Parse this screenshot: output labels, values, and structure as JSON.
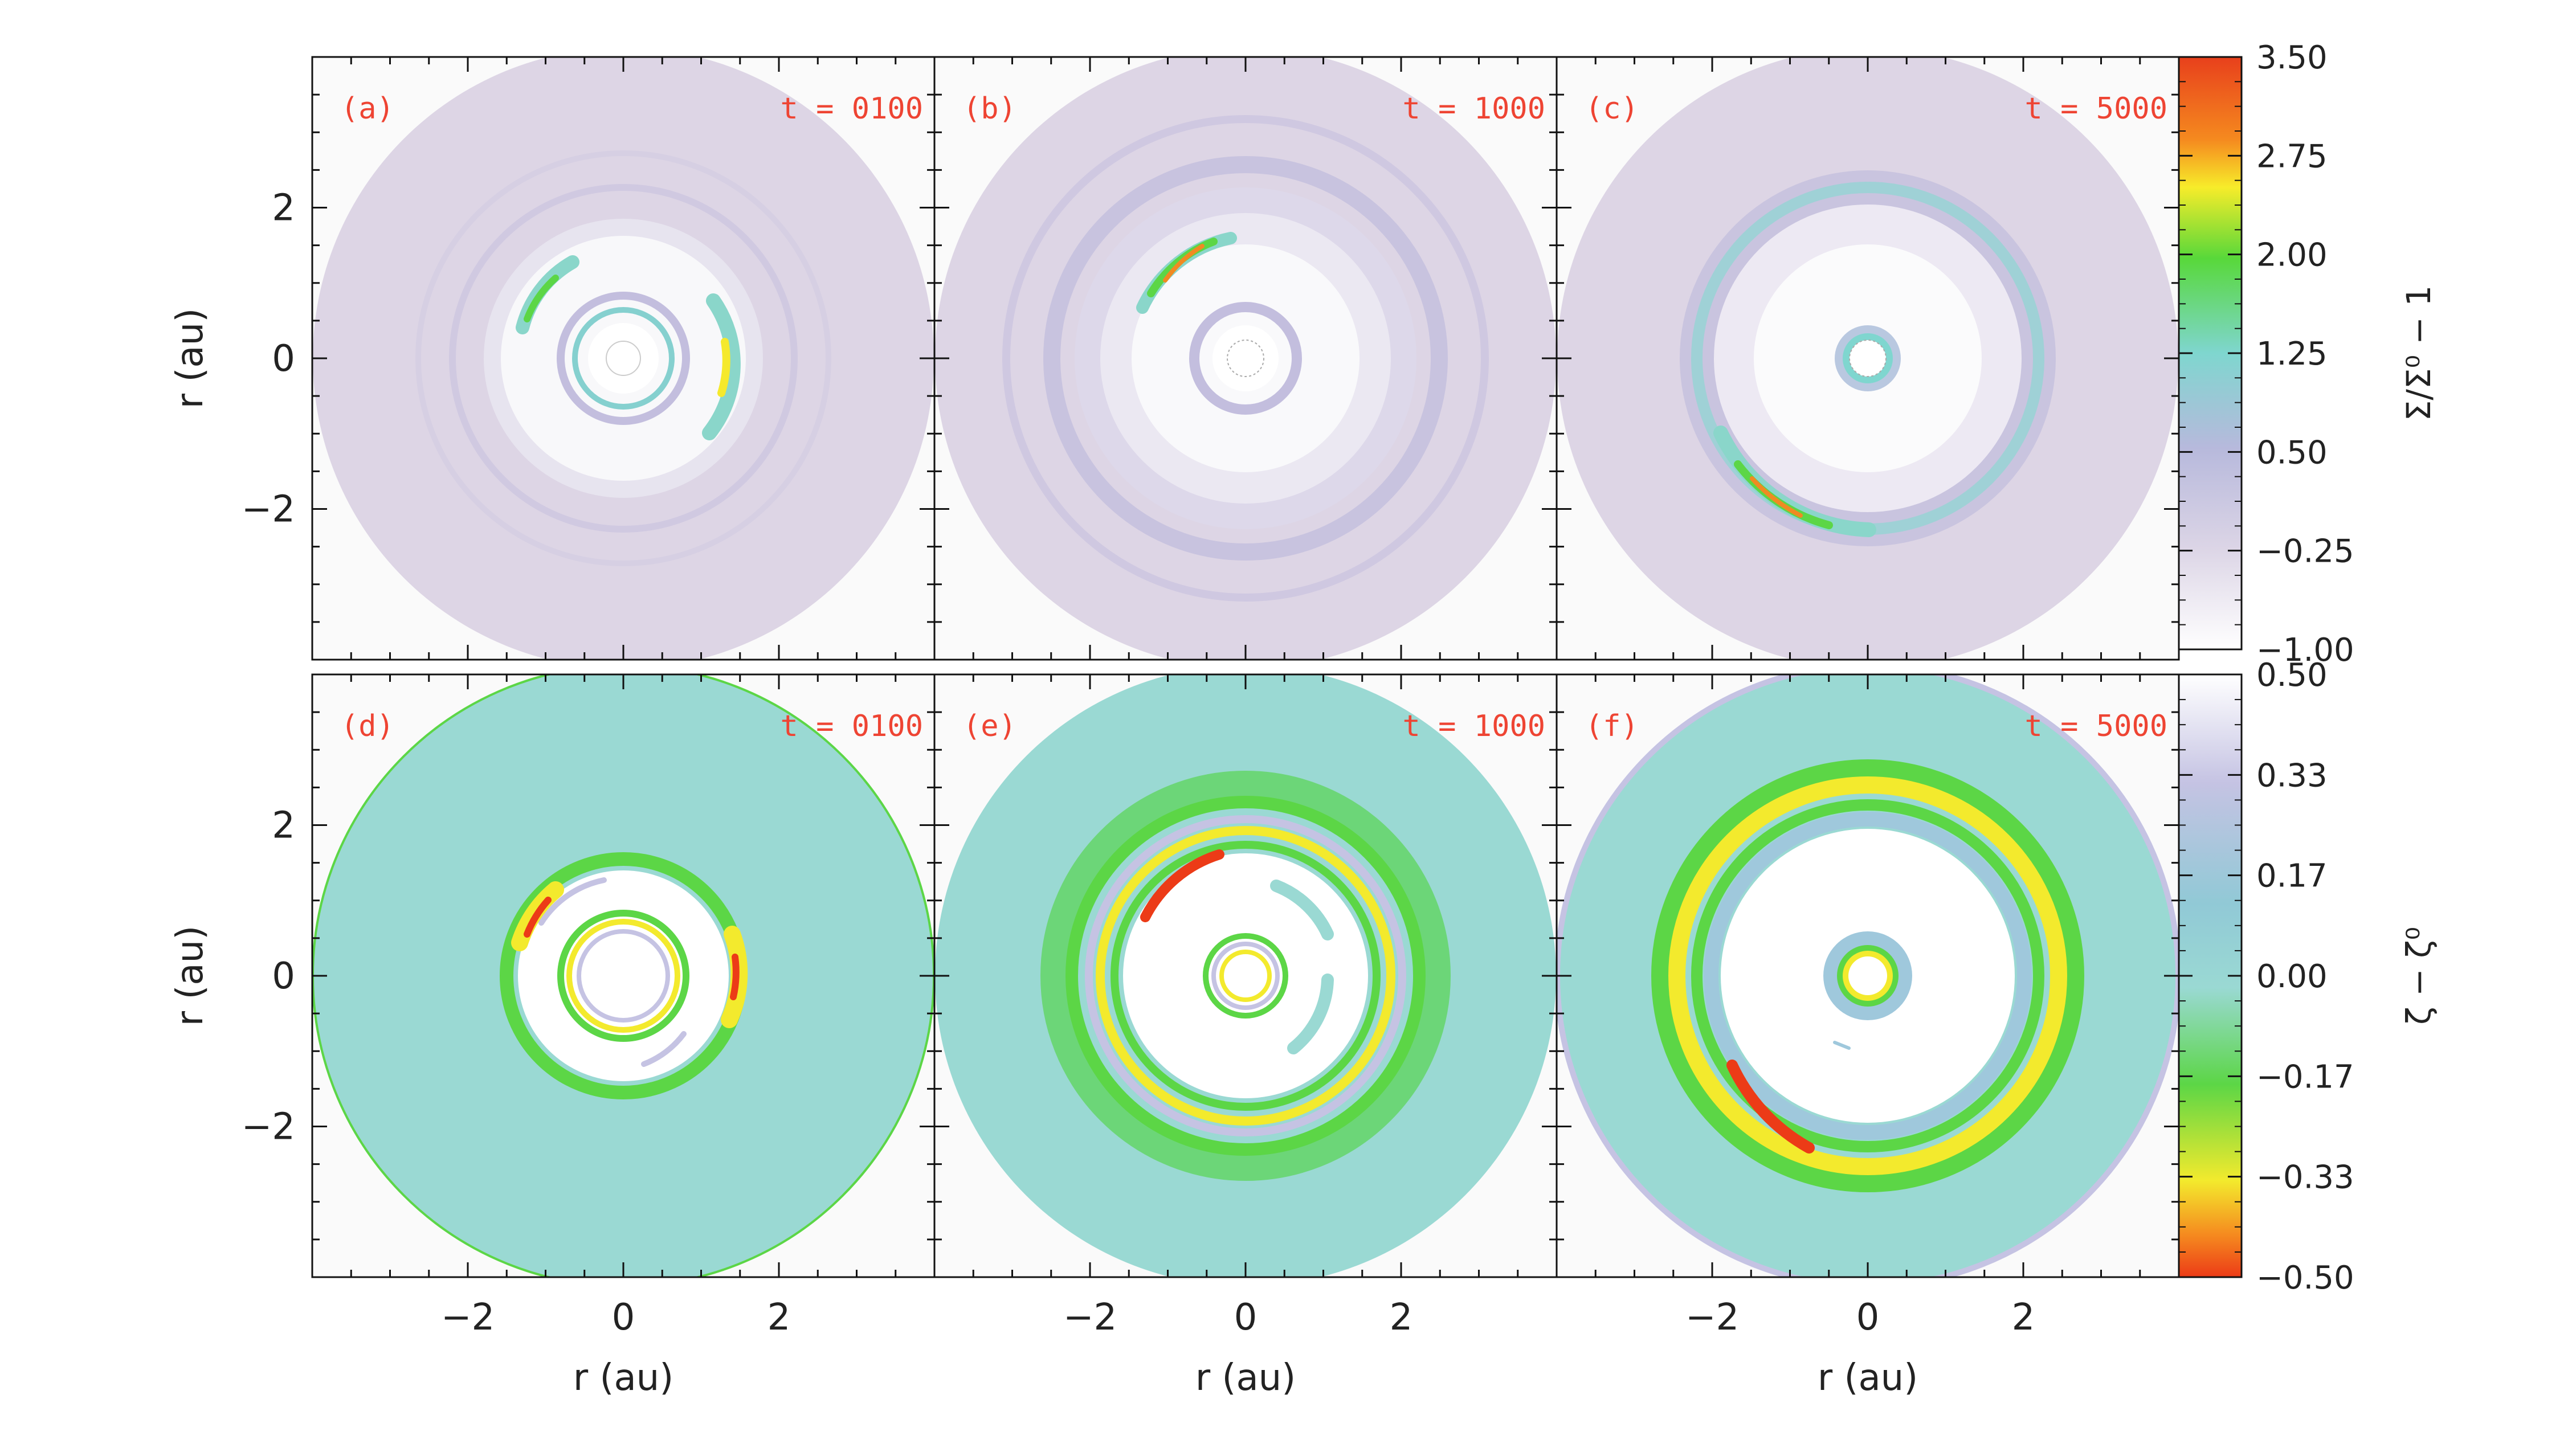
{
  "chart_data": {
    "type": "heatmap",
    "x_axis": {
      "label": "r (au)",
      "ticks": [
        -2,
        0,
        2
      ],
      "range": [
        -4,
        4
      ]
    },
    "y_axis": {
      "label": "r (au)",
      "ticks": [
        -2,
        0,
        2
      ],
      "range": [
        -4,
        4
      ]
    },
    "panels": [
      {
        "id": "a",
        "label": "(a)",
        "time": "t = 0100",
        "quantity": "surface_density",
        "row": 0,
        "col": 0
      },
      {
        "id": "b",
        "label": "(b)",
        "time": "t = 1000",
        "quantity": "surface_density",
        "row": 0,
        "col": 1
      },
      {
        "id": "c",
        "label": "(c)",
        "time": "t = 5000",
        "quantity": "surface_density",
        "row": 0,
        "col": 2
      },
      {
        "id": "d",
        "label": "(d)",
        "time": "t = 0100",
        "quantity": "zeta",
        "row": 1,
        "col": 0
      },
      {
        "id": "e",
        "label": "(e)",
        "time": "t = 1000",
        "quantity": "zeta",
        "row": 1,
        "col": 1
      },
      {
        "id": "f",
        "label": "(f)",
        "time": "t = 5000",
        "quantity": "zeta",
        "row": 1,
        "col": 2
      }
    ],
    "colorbars": [
      {
        "quantity": "surface_density",
        "label": "Σ/Σ⁰ − 1",
        "range": [
          -1.0,
          3.5
        ],
        "ticks": [
          "3.50",
          "2.75",
          "2.00",
          "1.25",
          "0.50",
          "−0.25",
          "−1.00"
        ],
        "colors_top_to_bottom": [
          "#e8401c",
          "#f7ec2a",
          "#58d83a",
          "#7fd6cf",
          "#b7b9dc",
          "#ffffff"
        ]
      },
      {
        "quantity": "zeta",
        "label": "ζ − ζ⁰",
        "range": [
          -0.5,
          0.5
        ],
        "ticks": [
          "0.50",
          "0.33",
          "0.17",
          "0.00",
          "−0.17",
          "−0.33",
          "−0.50"
        ],
        "colors_top_to_bottom": [
          "#ffffff",
          "#c5c3e3",
          "#91c9d6",
          "#9ad9d3",
          "#5cd646",
          "#f3ea2d",
          "#ec3b17"
        ]
      }
    ]
  }
}
